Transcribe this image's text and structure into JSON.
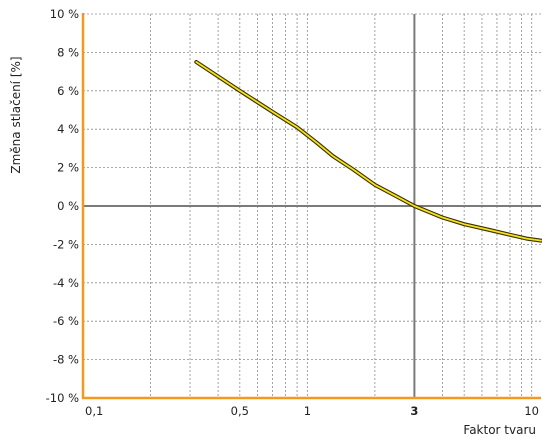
{
  "chart_data": {
    "type": "line",
    "title": "",
    "xlabel": "Faktor tvaru",
    "ylabel": "Změna stlačení [%]",
    "xscale": "log",
    "xlim": [
      0.1,
      11
    ],
    "ylim": [
      -10,
      10
    ],
    "grid": true,
    "x_ticks": [
      {
        "value": 0.1,
        "label": "0,1",
        "bold": false
      },
      {
        "value": 0.5,
        "label": "0,5",
        "bold": false
      },
      {
        "value": 1,
        "label": "1",
        "bold": false
      },
      {
        "value": 3,
        "label": "3",
        "bold": true
      },
      {
        "value": 10,
        "label": "10",
        "bold": false
      }
    ],
    "y_ticks": [
      {
        "value": 10,
        "label": "10 %"
      },
      {
        "value": 8,
        "label": "8 %"
      },
      {
        "value": 6,
        "label": "6 %"
      },
      {
        "value": 4,
        "label": "4 %"
      },
      {
        "value": 2,
        "label": "2 %"
      },
      {
        "value": 0,
        "label": "0 %"
      },
      {
        "value": -2,
        "label": "-2 %"
      },
      {
        "value": -4,
        "label": "-4 %"
      },
      {
        "value": -6,
        "label": "-6 %"
      },
      {
        "value": -8,
        "label": "-8 %"
      },
      {
        "value": -10,
        "label": "-10 %"
      }
    ],
    "reference_lines": {
      "x": 3,
      "y": 0
    },
    "series": [
      {
        "x": [
          0.32,
          0.5,
          0.7,
          0.9,
          1.1,
          1.3,
          1.6,
          2.0,
          2.5,
          3.0,
          4.0,
          5.0,
          6.5,
          8.0,
          9.5,
          11.0
        ],
        "y": [
          7.5,
          6.0,
          4.9,
          4.1,
          3.3,
          2.6,
          1.9,
          1.1,
          0.5,
          0.0,
          -0.6,
          -0.95,
          -1.25,
          -1.5,
          -1.7,
          -1.8
        ]
      }
    ],
    "colors": {
      "frame": "#f29a1e",
      "grid": "#8c8c8c",
      "reference": "#7a7a7a",
      "line_fill": "#f5e21a",
      "line_outline": "#3a3000"
    }
  }
}
